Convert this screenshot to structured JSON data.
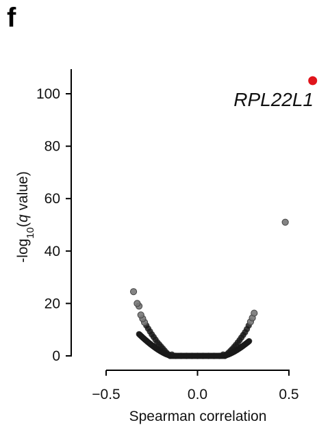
{
  "panel_label": "f",
  "colors": {
    "background": "#ffffff",
    "axis": "#000000",
    "points_ns": "#1a1a1a",
    "points_sig": "#777777",
    "highlight": "#e0141b"
  },
  "chart_data": {
    "type": "scatter",
    "title": "",
    "xlabel": "Spearman correlation",
    "ylabel_parts": {
      "prefix": "-log",
      "subscript": "10",
      "open": "(",
      "italic": "q",
      "rest": " value)"
    },
    "xlim": [
      -0.5,
      0.5
    ],
    "ylim": [
      0,
      105
    ],
    "x_ticks": [
      -0.5,
      0.0,
      0.5
    ],
    "x_tick_labels": [
      "−0.5",
      "0.0",
      "0.5"
    ],
    "y_ticks": [
      0,
      20,
      40,
      60,
      80,
      100
    ],
    "y_tick_labels": [
      "0",
      "20",
      "40",
      "60",
      "80",
      "100"
    ],
    "grid": false,
    "series": [
      {
        "role": "non-significant",
        "x": [
          -0.15,
          -0.12,
          -0.09,
          -0.06,
          -0.03,
          0.0,
          0.03,
          0.06,
          0.09,
          0.12,
          0.15,
          -0.14,
          0.14
        ],
        "y": [
          0,
          0,
          0,
          0,
          0,
          0,
          0,
          0,
          0,
          0,
          0,
          0.5,
          0.5
        ]
      },
      {
        "role": "left-arm",
        "x": [
          -0.16,
          -0.17,
          -0.18,
          -0.19,
          -0.2,
          -0.21,
          -0.22,
          -0.23,
          -0.24,
          -0.25,
          -0.26,
          -0.27,
          -0.28,
          -0.29,
          -0.3,
          -0.31,
          -0.32,
          -0.33,
          -0.35
        ],
        "y": [
          0.6,
          1.2,
          2,
          2.8,
          3.6,
          4.4,
          5.2,
          6.2,
          7.2,
          8.2,
          9.3,
          10.4,
          11.6,
          12.8,
          14.2,
          15.6,
          19,
          20,
          24.5
        ]
      },
      {
        "role": "right-arm",
        "x": [
          0.16,
          0.17,
          0.18,
          0.19,
          0.2,
          0.21,
          0.22,
          0.23,
          0.24,
          0.25,
          0.26,
          0.27,
          0.28,
          0.29,
          0.3,
          0.31
        ],
        "y": [
          0.6,
          1.2,
          1.9,
          2.6,
          3.4,
          4.2,
          5.1,
          6,
          7,
          8,
          9,
          10.2,
          11.6,
          13,
          14.5,
          16.3
        ]
      },
      {
        "role": "outlier",
        "x": [
          0.48
        ],
        "y": [
          51
        ]
      },
      {
        "role": "highlight",
        "name": "RPL22L1",
        "x": [
          0.63
        ],
        "y": [
          105
        ]
      }
    ],
    "annotations": [
      {
        "text": "RPL22L1",
        "x": 0.63,
        "y": 105
      }
    ]
  }
}
